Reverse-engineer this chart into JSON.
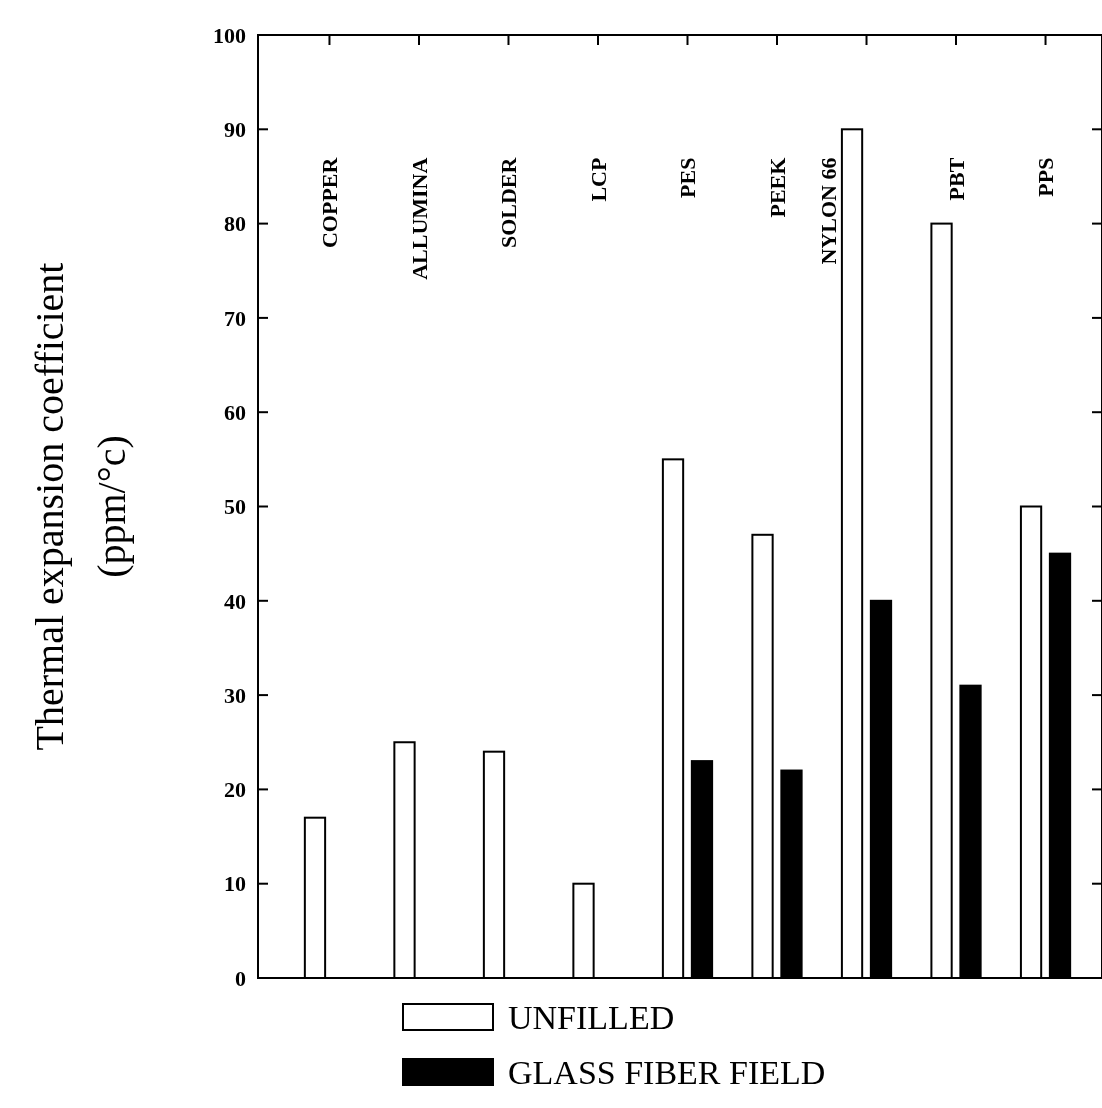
{
  "chart_data": {
    "type": "bar",
    "ylabel": "Thermal expansion coefficient (ppm/°c)",
    "categories": [
      "COPPER",
      "ALLUMINA",
      "SOLDER",
      "LCP",
      "PES",
      "PEEK",
      "NYLON 66",
      "PBT",
      "PPS"
    ],
    "series": [
      {
        "name": "UNFILLED",
        "color": "#ffffff",
        "values": [
          17,
          25,
          24,
          10,
          55,
          47,
          90,
          80,
          50
        ]
      },
      {
        "name": "GLASS FIBER FIELD",
        "color": "#000000",
        "values": [
          null,
          null,
          null,
          null,
          23,
          22,
          40,
          31,
          45
        ]
      }
    ],
    "ylim": [
      0,
      100
    ],
    "yticks": [
      0,
      10,
      20,
      30,
      40,
      50,
      60,
      70,
      80,
      90,
      100
    ],
    "legend": "bottom"
  }
}
